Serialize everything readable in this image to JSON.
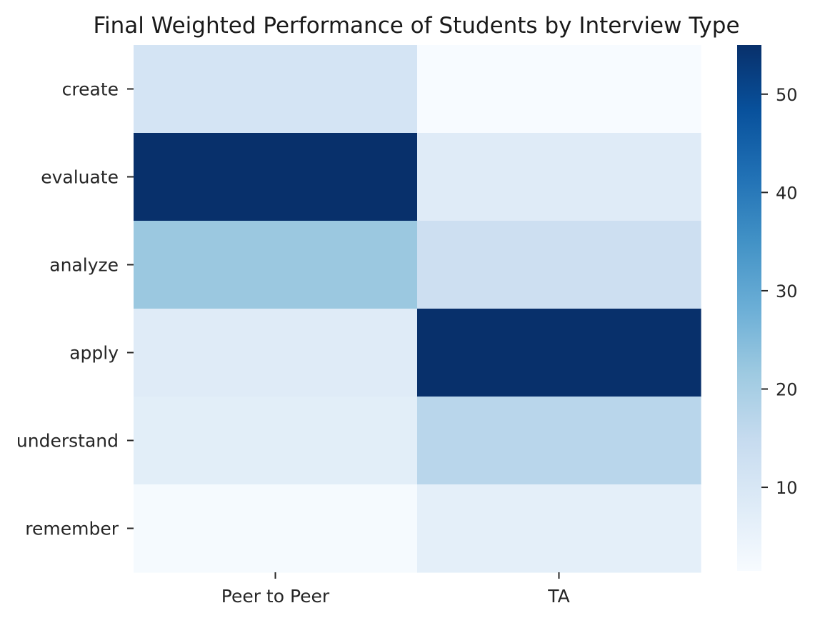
{
  "chart_data": {
    "type": "heatmap",
    "title": "Final Weighted Performance of Students by Interview Type",
    "xlabel": "",
    "ylabel": "",
    "columns": [
      "Peer to Peer",
      "TA"
    ],
    "rows": [
      "create",
      "evaluate",
      "analyze",
      "apply",
      "understand",
      "remember"
    ],
    "values": [
      [
        11,
        1.5
      ],
      [
        55,
        8
      ],
      [
        22,
        13
      ],
      [
        8,
        55
      ],
      [
        7,
        17
      ],
      [
        2,
        6.5
      ]
    ],
    "colorbar": {
      "min": 1.5,
      "max": 55,
      "ticks": [
        10,
        20,
        30,
        40,
        50
      ],
      "colormap": "Blues"
    },
    "grid": false,
    "legend": "colorbar-right"
  }
}
